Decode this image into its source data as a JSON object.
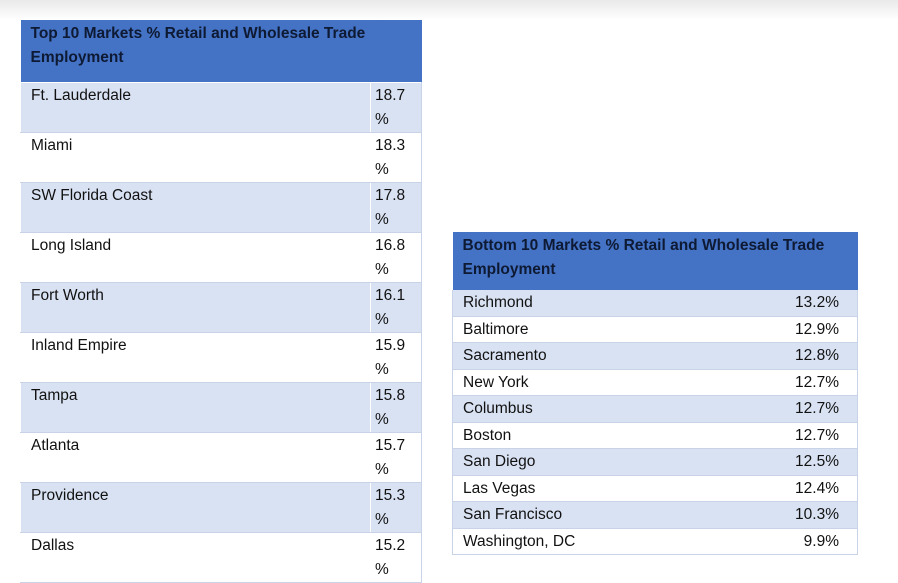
{
  "top_table": {
    "title": "Top 10 Markets % Retail and Wholesale Trade Employment",
    "rows": [
      {
        "market": "Ft. Lauderdale",
        "value": "18.7",
        "unit": "%"
      },
      {
        "market": "Miami",
        "value": "18.3",
        "unit": "%"
      },
      {
        "market": "SW Florida Coast",
        "value": "17.8",
        "unit": "%"
      },
      {
        "market": "Long Island",
        "value": "16.8",
        "unit": "%"
      },
      {
        "market": "Fort Worth",
        "value": "16.1",
        "unit": "%"
      },
      {
        "market": "Inland Empire",
        "value": "15.9",
        "unit": "%"
      },
      {
        "market": "Tampa",
        "value": "15.8",
        "unit": "%"
      },
      {
        "market": "Atlanta",
        "value": "15.7",
        "unit": "%"
      },
      {
        "market": "Providence",
        "value": "15.3",
        "unit": "%"
      },
      {
        "market": "Dallas",
        "value": "15.2",
        "unit": "%"
      }
    ]
  },
  "bottom_table": {
    "title": "Bottom 10 Markets % Retail and Wholesale Trade Employment",
    "rows": [
      {
        "market": "Richmond",
        "value": "13.2%"
      },
      {
        "market": "Baltimore",
        "value": "12.9%"
      },
      {
        "market": "Sacramento",
        "value": "12.8%"
      },
      {
        "market": "New York",
        "value": "12.7%"
      },
      {
        "market": "Columbus",
        "value": "12.7%"
      },
      {
        "market": "Boston",
        "value": "12.7%"
      },
      {
        "market": "San Diego",
        "value": "12.5%"
      },
      {
        "market": "Las Vegas",
        "value": "12.4%"
      },
      {
        "market": "San Francisco",
        "value": "10.3%"
      },
      {
        "market": "Washington, DC",
        "value": "9.9%"
      }
    ]
  },
  "colors": {
    "header_bg": "#4472c4",
    "band_bg": "#d9e2f3",
    "row_border": "#c9d3e8"
  }
}
